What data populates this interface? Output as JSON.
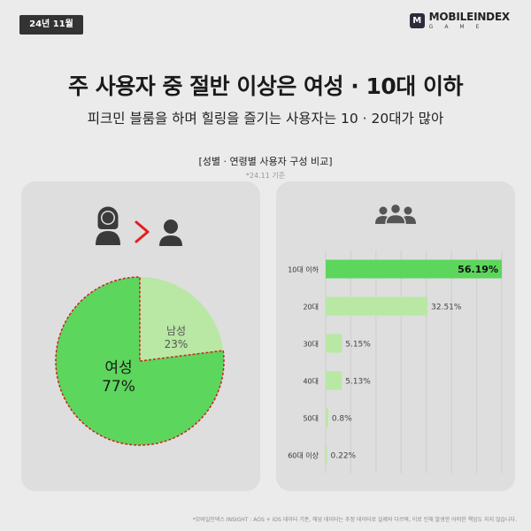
{
  "header": {
    "date_badge": "24년 11월",
    "brand_name": "MOBILEINDEX",
    "brand_sub": "GAME",
    "brand_icon": "M"
  },
  "headline": "주 사용자 중 절반 이상은 여성 · 10대 이하",
  "subline": "피크민 블룸을 하며 힐링을 즐기는 사용자는 10 · 20대가 많아",
  "chart_tag": "[성별 · 연령별 사용자 구성 비교]",
  "basis_note": "*24.11 기준",
  "footnote": "*모바일인덱스 INSIGHT : AOS + iOS 데이터 기준, 해당 데이터는 추정 데이터로 실제와 다르며, 이로 인해 발생한 어떠한 책임도 지지 않습니다.",
  "icons": {
    "left": [
      "woman-icon",
      "greater-than-icon",
      "man-icon"
    ],
    "right": "user-group-icon"
  },
  "colors": {
    "female": "#5cd65c",
    "male": "#b8e8a4",
    "bar_highlight": "#5cd65c",
    "bar_normal": "#b8e8a4",
    "greater_than": "#e02020",
    "outline": "#cc2222"
  },
  "chart_data": [
    {
      "type": "pie",
      "title": "",
      "slices": [
        {
          "label": "여성",
          "value": 77,
          "display": "77%",
          "color": "#5cd65c"
        },
        {
          "label": "남성",
          "value": 23,
          "display": "23%",
          "color": "#b8e8a4"
        }
      ]
    },
    {
      "type": "bar",
      "orientation": "horizontal",
      "title": "",
      "categories": [
        "10대 이하",
        "20대",
        "30대",
        "40대",
        "50대",
        "60대 이상"
      ],
      "values": [
        56.19,
        32.51,
        5.15,
        5.13,
        0.8,
        0.22
      ],
      "labels": [
        "56.19%",
        "32.51%",
        "5.15%",
        "5.13%",
        "0.8%",
        "0.22%"
      ],
      "xlim": [
        0,
        56.19
      ],
      "grid": true,
      "highlight_index": 0
    }
  ]
}
